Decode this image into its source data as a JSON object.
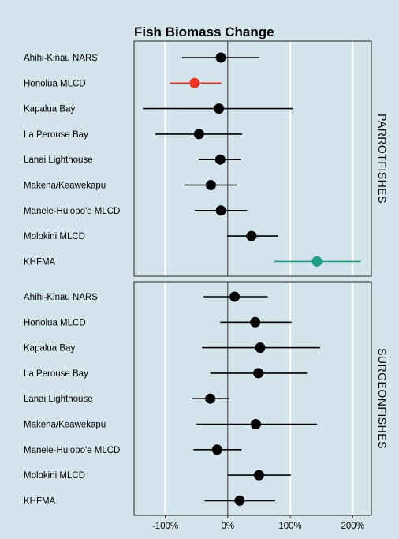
{
  "chart_data": {
    "type": "scatter",
    "title": "Fish Biomass Change",
    "xlabel": "",
    "ylabel": "",
    "xlim": [
      -150,
      230
    ],
    "x_ticks": [
      -100,
      0,
      100,
      200
    ],
    "x_tick_labels": [
      "-100%",
      "0%",
      "100%",
      "200%"
    ],
    "grid": true,
    "colors": {
      "background": "#d4e4ec",
      "panel": "#d4e4ec",
      "gridline": "#ffffff",
      "zero_line": "#333333",
      "default_point": "#000000",
      "decrease": "#ee3322",
      "increase": "#1a9e82"
    },
    "panels": [
      {
        "name": "PARROTFISHES",
        "points": [
          {
            "site": "Ahihi-Kinau NARS",
            "estimate": -11,
            "low": -73,
            "high": 50,
            "highlight": "none"
          },
          {
            "site": "Honolua MLCD",
            "estimate": -53,
            "low": -92,
            "high": -10,
            "highlight": "decrease"
          },
          {
            "site": "Kapalua Bay",
            "estimate": -14,
            "low": -136,
            "high": 105,
            "highlight": "none"
          },
          {
            "site": "La Perouse Bay",
            "estimate": -46,
            "low": -116,
            "high": 23,
            "highlight": "none"
          },
          {
            "site": "Lanai Lighthouse",
            "estimate": -12,
            "low": -46,
            "high": 21,
            "highlight": "none"
          },
          {
            "site": "Makena/Keawekapu",
            "estimate": -27,
            "low": -70,
            "high": 15,
            "highlight": "none"
          },
          {
            "site": "Manele-Hulopo'e MLCD",
            "estimate": -11,
            "low": -53,
            "high": 31,
            "highlight": "none"
          },
          {
            "site": "Molokini MLCD",
            "estimate": 38,
            "low": -1,
            "high": 80,
            "highlight": "none"
          },
          {
            "site": "KHFMA",
            "estimate": 143,
            "low": 74,
            "high": 213,
            "highlight": "increase"
          }
        ]
      },
      {
        "name": "SURGEONFISHES",
        "points": [
          {
            "site": "Ahihi-Kinau NARS",
            "estimate": 11,
            "low": -39,
            "high": 64,
            "highlight": "none"
          },
          {
            "site": "Honolua MLCD",
            "estimate": 44,
            "low": -12,
            "high": 102,
            "highlight": "none"
          },
          {
            "site": "Kapalua Bay",
            "estimate": 52,
            "low": -41,
            "high": 148,
            "highlight": "none"
          },
          {
            "site": "La Perouse Bay",
            "estimate": 49,
            "low": -28,
            "high": 127,
            "highlight": "none"
          },
          {
            "site": "Lanai Lighthouse",
            "estimate": -28,
            "low": -57,
            "high": 3,
            "highlight": "none"
          },
          {
            "site": "Makena/Keawekapu",
            "estimate": 45,
            "low": -50,
            "high": 143,
            "highlight": "none"
          },
          {
            "site": "Manele-Hulopo'e MLCD",
            "estimate": -17,
            "low": -55,
            "high": 22,
            "highlight": "none"
          },
          {
            "site": "Molokini MLCD",
            "estimate": 50,
            "low": 0,
            "high": 101,
            "highlight": "none"
          },
          {
            "site": "KHFMA",
            "estimate": 19,
            "low": -37,
            "high": 76,
            "highlight": "none"
          }
        ]
      }
    ]
  }
}
